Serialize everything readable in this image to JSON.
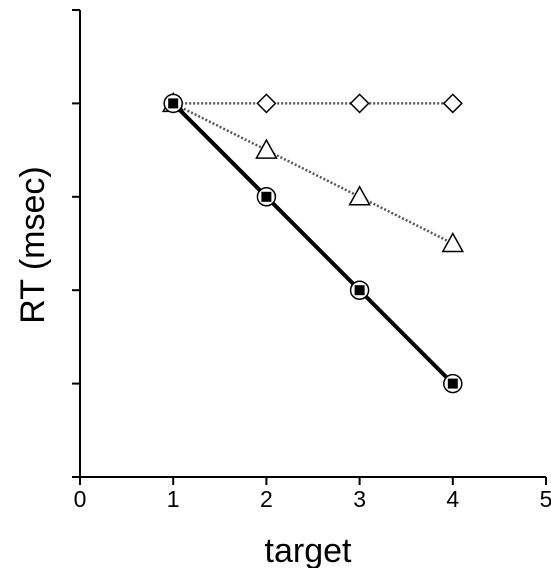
{
  "chart_data": {
    "type": "line",
    "title": "",
    "xlabel": "target",
    "ylabel": "RT (msec)",
    "xlim": [
      0,
      5
    ],
    "ylim": [
      0,
      5
    ],
    "x_ticks": [
      "0",
      "1",
      "2",
      "3",
      "4",
      "5"
    ],
    "y_ticks_labeled": false,
    "grid": false,
    "legend": "none",
    "x": [
      1,
      2,
      3,
      4
    ],
    "series": [
      {
        "marker": "diamond",
        "line": "dotted",
        "color": "#555555",
        "values": [
          4,
          4,
          4,
          4
        ]
      },
      {
        "marker": "triangle",
        "line": "dotted",
        "color": "#555555",
        "values": [
          4,
          3.5,
          3,
          2.5
        ]
      },
      {
        "marker": "circle",
        "line": "solid",
        "color": "#000000",
        "values": [
          4,
          3,
          2,
          1
        ]
      },
      {
        "marker": "filled-square",
        "line": "solid",
        "color": "#000000",
        "values": [
          4,
          3,
          2,
          1
        ]
      }
    ]
  }
}
